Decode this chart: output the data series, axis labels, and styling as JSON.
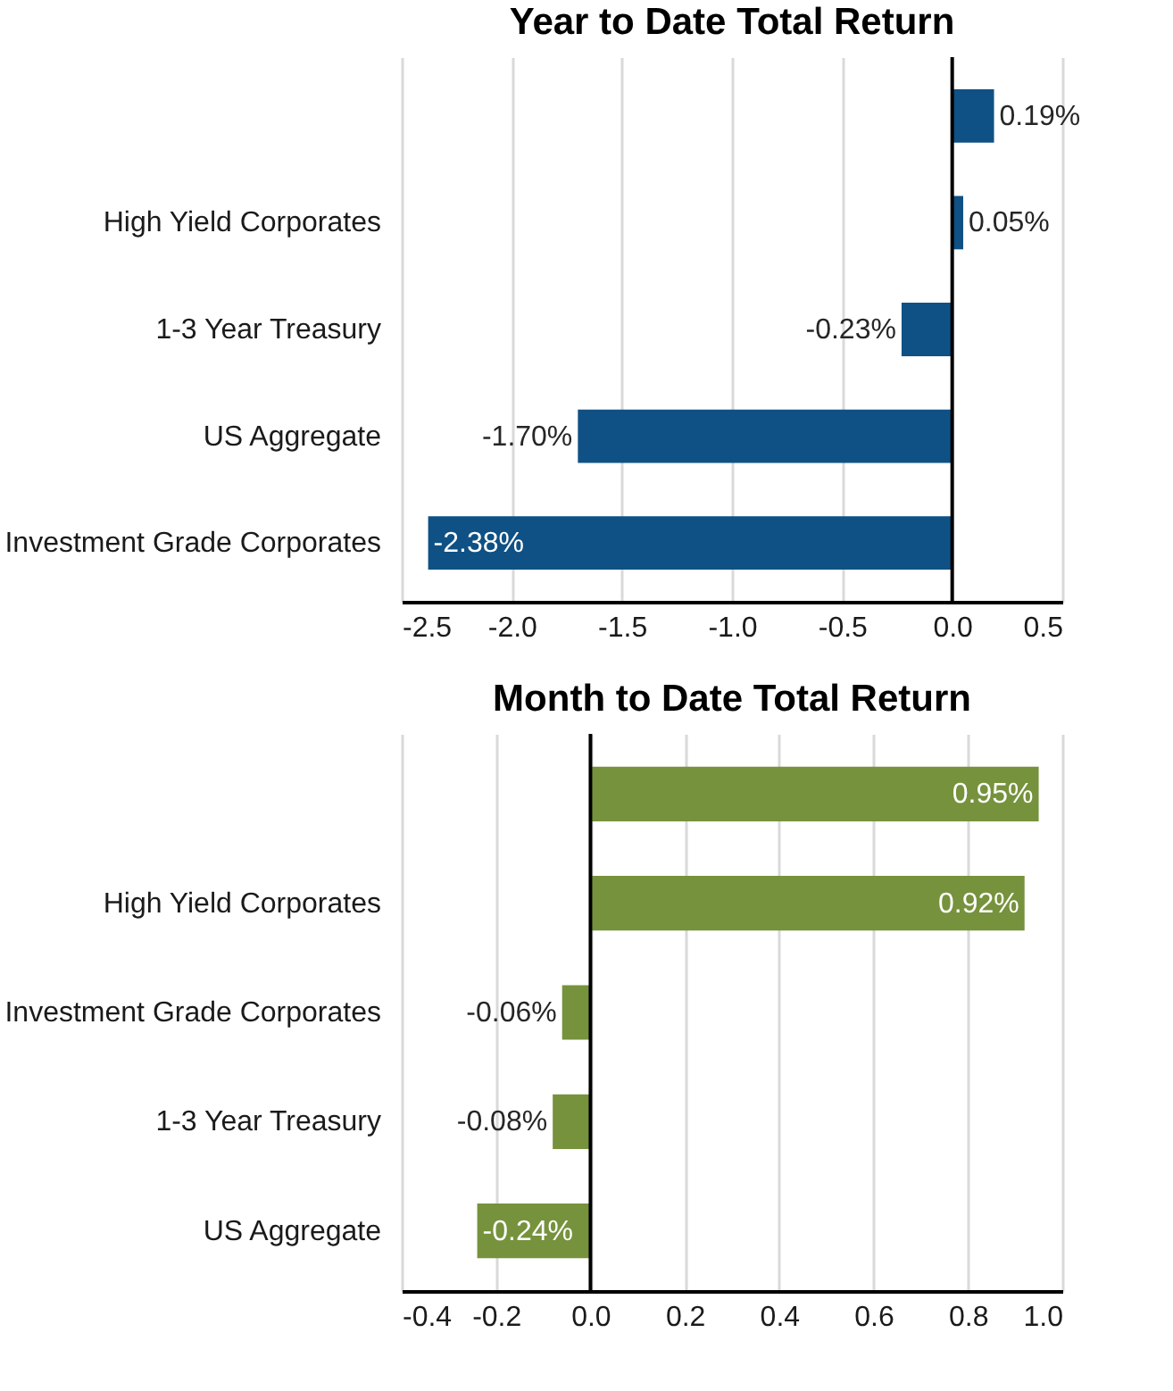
{
  "chart_data": [
    {
      "type": "bar",
      "title": "Year to Date Total Return",
      "orientation": "horizontal",
      "categories": [
        null,
        "High Yield Corporates",
        "1-3 Year Treasury",
        "US Aggregate",
        "Investment Grade Corporates"
      ],
      "values": [
        0.19,
        0.05,
        -0.23,
        -1.7,
        -2.38
      ],
      "value_labels": [
        "0.19%",
        "0.05%",
        "-0.23%",
        "-1.70%",
        "-2.38%"
      ],
      "color": "#0f5184",
      "xlim": [
        -2.5,
        0.5
      ],
      "xticks": [
        -2.5,
        {
          "value": -2.0,
          "label": "-2.0"
        },
        -1.5,
        {
          "value": -1.0,
          "label": "-1.0"
        },
        -0.5,
        {
          "value": 0,
          "label": "0.0"
        },
        0.5
      ],
      "grid": "x",
      "ref_lines": [
        {
          "axis": "x",
          "value": 0,
          "color": "#000000"
        }
      ]
    },
    {
      "type": "bar",
      "title": "Month to Date Total Return",
      "orientation": "horizontal",
      "categories": [
        null,
        "High Yield Corporates",
        "Investment Grade Corporates",
        "1-3 Year Treasury",
        "US Aggregate"
      ],
      "values": [
        0.95,
        0.92,
        -0.06,
        -0.08,
        -0.24
      ],
      "value_labels": [
        "0.95%",
        "0.92%",
        "-0.06%",
        "-0.08%",
        "-0.24%"
      ],
      "color": "#76923c",
      "xlim": [
        -0.4,
        1.0
      ],
      "xticks": [
        -0.4,
        -0.2,
        {
          "value": 0,
          "label": "0.0"
        },
        0.2,
        0.4,
        0.6,
        0.8,
        {
          "value": 1.0,
          "label": "1.0"
        }
      ],
      "grid": "x",
      "ref_lines": [
        {
          "axis": "x",
          "value": 0,
          "color": "#000000"
        }
      ]
    }
  ]
}
